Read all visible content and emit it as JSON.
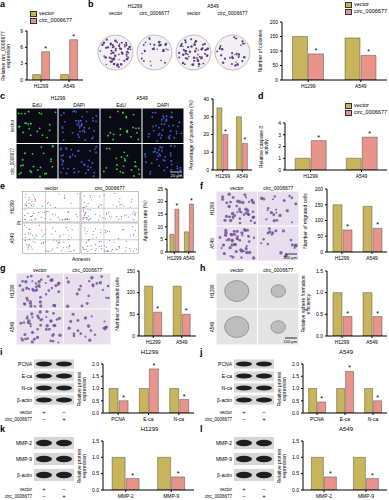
{
  "chart_data": [
    {
      "panel": "a",
      "type": "bar",
      "y_label": "Relative circ_0006677 expression",
      "categories": [
        "H1299",
        "A549"
      ],
      "series": [
        {
          "name": "vector",
          "color": "#c8b45a",
          "values": [
            1,
            1
          ]
        },
        {
          "name": "circ_0006677",
          "color": "#e8948a",
          "values": [
            5.2,
            7.4
          ],
          "annotations": [
            "*",
            "*"
          ]
        }
      ],
      "ylim": [
        0,
        9
      ],
      "yticks": [
        0,
        3,
        6,
        9
      ],
      "legend": "upper left"
    },
    {
      "panel": "b",
      "type": "bar",
      "image": {
        "col_groups": [
          "H1299",
          "A549"
        ],
        "cols": [
          "vector",
          "circ_0006677"
        ]
      },
      "y_label": "Number of colonies",
      "categories": [
        "H1299",
        "A549"
      ],
      "series": [
        {
          "name": "vector",
          "color": "#c8b45a",
          "values": [
            150,
            145
          ]
        },
        {
          "name": "circ_0006677",
          "color": "#e8948a",
          "values": [
            90,
            85
          ],
          "annotations": [
            "*",
            "*"
          ]
        }
      ],
      "ylim": [
        0,
        200
      ],
      "yticks": [
        0,
        50,
        100,
        150,
        200
      ],
      "legend": "upper right"
    },
    {
      "panel": "c",
      "type": "bar",
      "image": {
        "col_groups": [
          "H1299",
          "A549"
        ],
        "cols": [
          "EdU",
          "DAPI"
        ],
        "rows": [
          "vector",
          "circ_0006677"
        ],
        "scale": "20 μm"
      },
      "y_label": "Percentage of positive cells (%)",
      "categories": [
        "H1299",
        "A549"
      ],
      "series": [
        {
          "color": "#c8b45a",
          "values": [
            35,
            30
          ]
        },
        {
          "color": "#e8948a",
          "values": [
            20,
            15
          ],
          "annotations": [
            "*",
            "*"
          ]
        }
      ],
      "ylim": [
        0,
        40
      ],
      "yticks": [
        0,
        10,
        20,
        30,
        40
      ]
    },
    {
      "panel": "d",
      "type": "bar",
      "y_label": "Relative caspase 3 activity",
      "categories": [
        "H1299",
        "A549"
      ],
      "series": [
        {
          "name": "vector",
          "color": "#c8b45a",
          "values": [
            1,
            1
          ]
        },
        {
          "name": "circ_0006677",
          "color": "#e8948a",
          "values": [
            2.5,
            2.8
          ],
          "annotations": [
            "*",
            "*"
          ]
        }
      ],
      "ylim": [
        0,
        4
      ],
      "yticks": [
        0,
        1,
        2,
        3,
        4
      ],
      "legend": "upper right"
    },
    {
      "panel": "e",
      "type": "bar",
      "image": {
        "rows": [
          "H1299",
          "A549"
        ],
        "cols": [
          "vector",
          "circ_0006677"
        ],
        "x_label": "Annexin",
        "y_label": "PI"
      },
      "y_label": "Apoptosis rate (%)",
      "categories": [
        "H1299",
        "A549"
      ],
      "series": [
        {
          "color": "#c8b45a",
          "values": [
            7,
            8
          ]
        },
        {
          "color": "#e8948a",
          "values": [
            17,
            19
          ],
          "annotations": [
            "*",
            "*"
          ]
        }
      ],
      "ylim": [
        0,
        25
      ],
      "yticks": [
        0,
        5,
        10,
        15,
        20,
        25
      ]
    },
    {
      "panel": "f",
      "type": "bar",
      "image": {
        "rows": [
          "H1299",
          "A549"
        ],
        "cols": [
          "vector",
          "circ_0006677"
        ],
        "scale": "200 μm"
      },
      "y_label": "Number of migrated cells",
      "categories": [
        "H1299",
        "A549"
      ],
      "series": [
        {
          "color": "#c8b45a",
          "values": [
            150,
            145
          ]
        },
        {
          "color": "#e8948a",
          "values": [
            70,
            75
          ],
          "annotations": [
            "*",
            "*"
          ]
        }
      ],
      "ylim": [
        0,
        200
      ],
      "yticks": [
        0,
        50,
        100,
        150,
        200
      ]
    },
    {
      "panel": "g",
      "type": "bar",
      "image": {
        "rows": [
          "H1299",
          "A549"
        ],
        "cols": [
          "vector",
          "circ_0006677"
        ]
      },
      "y_label": "Number of invaded cells",
      "categories": [
        "H1299",
        "A549"
      ],
      "series": [
        {
          "color": "#c8b45a",
          "values": [
            115,
            115
          ]
        },
        {
          "color": "#e8948a",
          "values": [
            55,
            50
          ],
          "annotations": [
            "*",
            "*"
          ]
        }
      ],
      "ylim": [
        0,
        150
      ],
      "yticks": [
        0,
        50,
        100,
        150
      ]
    },
    {
      "panel": "h",
      "type": "bar",
      "image": {
        "rows": [
          "H1299",
          "A549"
        ],
        "cols": [
          "vector",
          "circ_0006677"
        ],
        "scale": "100 μm"
      },
      "y_label": "Relative sphere formation efficiency",
      "categories": [
        "H1299",
        "A549"
      ],
      "series": [
        {
          "color": "#c8b45a",
          "values": [
            1,
            1
          ]
        },
        {
          "color": "#e8948a",
          "values": [
            0.45,
            0.45
          ],
          "annotations": [
            "*",
            "*"
          ]
        }
      ],
      "ylim": [
        0,
        1.5
      ],
      "yticks": [
        {
          "value": 0,
          "label": "0.0"
        },
        0.5,
        {
          "value": 1,
          "label": "1.0"
        },
        1.5
      ]
    },
    {
      "panel": "i",
      "type": "bar",
      "title": "H1299",
      "image": {
        "bands": [
          "PCNA",
          "E-ca",
          "N-ca",
          "β-actin"
        ],
        "lanes": [
          {
            "name": "vector",
            "signs": [
              "+",
              "−"
            ]
          },
          {
            "name": "circ_0006677",
            "signs": [
              "−",
              "+"
            ]
          }
        ]
      },
      "y_label": "Relative protein expression",
      "categories": [
        "PCNA",
        "E-ca",
        "N-ca"
      ],
      "series": [
        {
          "color": "#c8b45a",
          "values": [
            1,
            1,
            1
          ]
        },
        {
          "color": "#e8948a",
          "values": [
            0.5,
            1.8,
            0.55
          ],
          "annotations": [
            "*",
            "*",
            "*"
          ]
        }
      ],
      "ylim": [
        0,
        2
      ],
      "yticks": [
        {
          "value": 0,
          "label": "0.0"
        },
        0.5,
        {
          "value": 1,
          "label": "1.0"
        },
        1.5,
        {
          "value": 2,
          "label": "2.0"
        }
      ]
    },
    {
      "panel": "j",
      "type": "bar",
      "title": "A549",
      "image": {
        "bands": [
          "PCNA",
          "E-ca",
          "N-ca",
          "β-actin"
        ],
        "lanes": [
          {
            "name": "vector",
            "signs": [
              "+",
              "−"
            ]
          },
          {
            "name": "circ_0006677",
            "signs": [
              "−",
              "+"
            ]
          }
        ]
      },
      "y_label": "Relative protein expression",
      "categories": [
        "PCNA",
        "E-ca",
        "N-ca"
      ],
      "series": [
        {
          "color": "#c8b45a",
          "values": [
            1,
            1,
            1
          ]
        },
        {
          "color": "#e8948a",
          "values": [
            0.45,
            1.7,
            0.5
          ],
          "annotations": [
            "*",
            "*",
            "*"
          ]
        }
      ],
      "ylim": [
        0,
        2
      ],
      "yticks": [
        {
          "value": 0,
          "label": "0.0"
        },
        0.5,
        {
          "value": 1,
          "label": "1.0"
        },
        1.5,
        {
          "value": 2,
          "label": "2.0"
        }
      ]
    },
    {
      "panel": "k",
      "type": "bar",
      "title": "H1299",
      "image": {
        "bands": [
          "MMP-2",
          "MMP-9",
          "β-actin"
        ],
        "lanes": [
          {
            "name": "vector",
            "signs": [
              "+",
              "−"
            ]
          },
          {
            "name": "circ_0006677",
            "signs": [
              "−",
              "+"
            ]
          }
        ]
      },
      "y_label": "Relative protein expression",
      "categories": [
        "MMP-2",
        "MMP-9"
      ],
      "series": [
        {
          "color": "#c8b45a",
          "values": [
            1,
            1
          ]
        },
        {
          "color": "#e8948a",
          "values": [
            0.35,
            0.4
          ],
          "annotations": [
            "*",
            "*"
          ]
        }
      ],
      "ylim": [
        0,
        1.5
      ],
      "yticks": [
        {
          "value": 0,
          "label": "0.0"
        },
        0.5,
        {
          "value": 1,
          "label": "1.0"
        },
        1.5
      ]
    },
    {
      "panel": "l",
      "type": "bar",
      "title": "A549",
      "image": {
        "bands": [
          "MMP-2",
          "MMP-9",
          "β-actin"
        ],
        "lanes": [
          {
            "name": "vector",
            "signs": [
              "+",
              "−"
            ]
          },
          {
            "name": "circ_0006677",
            "signs": [
              "−",
              "+"
            ]
          }
        ]
      },
      "y_label": "Relative protein expression",
      "categories": [
        "MMP-2",
        "MMP-9"
      ],
      "series": [
        {
          "color": "#c8b45a",
          "values": [
            1,
            1
          ]
        },
        {
          "color": "#e8948a",
          "values": [
            0.4,
            0.35
          ],
          "annotations": [
            "*",
            "*"
          ]
        }
      ],
      "ylim": [
        0,
        1.5
      ],
      "yticks": [
        {
          "value": 0,
          "label": "0.0"
        },
        0.5,
        {
          "value": 1,
          "label": "1.0"
        },
        1.5
      ]
    }
  ]
}
